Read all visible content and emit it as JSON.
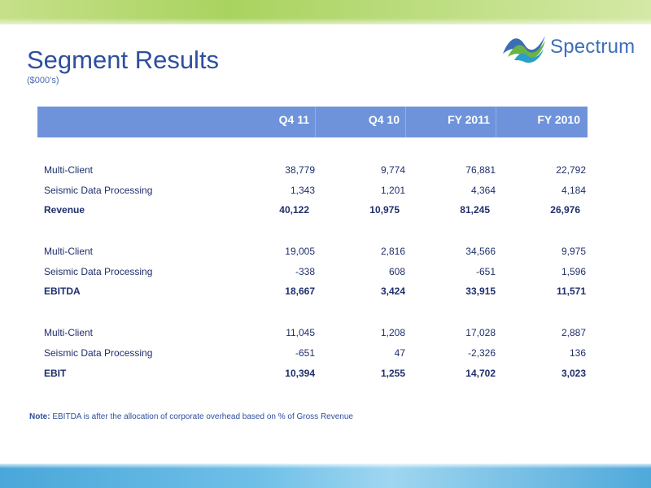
{
  "slide": {
    "title": "Segment Results",
    "subtitle": "($000’s)",
    "logo_text": "Spectrum"
  },
  "table": {
    "columns": [
      "Q4 11",
      "Q4 10",
      "FY 2011",
      "FY 2010"
    ],
    "groups": [
      {
        "rows": [
          {
            "label": "Multi-Client",
            "values": [
              "38,779",
              "9,774",
              "76,881",
              "22,792"
            ],
            "bold": false
          },
          {
            "label": "Seismic Data Processing",
            "values": [
              "1,343",
              "1,201",
              "4,364",
              "4,184"
            ],
            "bold": false
          },
          {
            "label": "Revenue",
            "values": [
              "40,122",
              "10,975",
              "81,245",
              "26,976"
            ],
            "bold": true
          }
        ]
      },
      {
        "rows": [
          {
            "label": "Multi-Client",
            "values": [
              "19,005",
              "2,816",
              "34,566",
              "9,975"
            ],
            "bold": false
          },
          {
            "label": "Seismic Data Processing",
            "values": [
              "-338",
              "608",
              "-651",
              "1,596"
            ],
            "bold": false
          },
          {
            "label": "EBITDA",
            "values": [
              "18,667",
              "3,424",
              "33,915",
              "11,571"
            ],
            "bold": true
          }
        ]
      },
      {
        "rows": [
          {
            "label": "Multi-Client",
            "values": [
              "11,045",
              "1,208",
              "17,028",
              "2,887"
            ],
            "bold": false
          },
          {
            "label": "Seismic Data Processing",
            "values": [
              "-651",
              "47",
              "-2,326",
              "136"
            ],
            "bold": false
          },
          {
            "label": "EBIT",
            "values": [
              "10,394",
              "1,255",
              "14,702",
              "3,023"
            ],
            "bold": true
          }
        ]
      }
    ]
  },
  "note": {
    "label": "Note:",
    "text": " EBITDA is after the allocation of corporate overhead based on % of Gross Revenue"
  },
  "colors": {
    "title": "#2e4f9e",
    "header_bg": "#6e93da",
    "text": "#1f2f6b"
  }
}
